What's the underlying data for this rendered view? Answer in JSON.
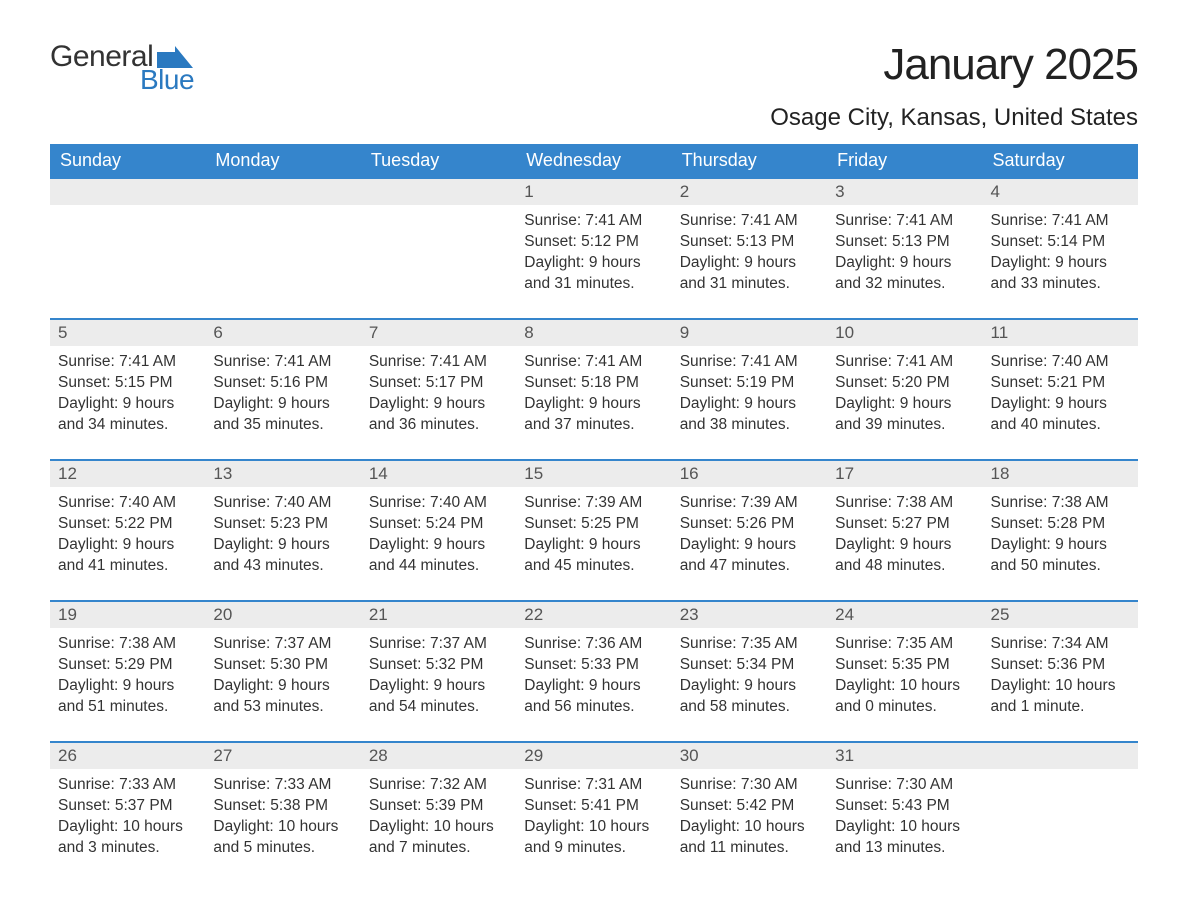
{
  "brand": {
    "line1": "General",
    "line2": "Blue",
    "accent_color": "#2a79c0"
  },
  "title": "January 2025",
  "location": "Osage City, Kansas, United States",
  "colors": {
    "header_bg": "#3585cc",
    "header_text": "#ffffff",
    "daynum_bg": "#ececec",
    "daynum_text": "#555555",
    "body_text": "#333333",
    "week_divider": "#3585cc",
    "page_bg": "#ffffff"
  },
  "typography": {
    "title_fontsize": 44,
    "location_fontsize": 24,
    "dow_fontsize": 18,
    "daynum_fontsize": 17,
    "body_fontsize": 15.5
  },
  "days_of_week": [
    "Sunday",
    "Monday",
    "Tuesday",
    "Wednesday",
    "Thursday",
    "Friday",
    "Saturday"
  ],
  "weeks": [
    [
      {
        "n": null
      },
      {
        "n": null
      },
      {
        "n": null
      },
      {
        "n": 1,
        "sunrise": "7:41 AM",
        "sunset": "5:12 PM",
        "daylight": "9 hours and 31 minutes."
      },
      {
        "n": 2,
        "sunrise": "7:41 AM",
        "sunset": "5:13 PM",
        "daylight": "9 hours and 31 minutes."
      },
      {
        "n": 3,
        "sunrise": "7:41 AM",
        "sunset": "5:13 PM",
        "daylight": "9 hours and 32 minutes."
      },
      {
        "n": 4,
        "sunrise": "7:41 AM",
        "sunset": "5:14 PM",
        "daylight": "9 hours and 33 minutes."
      }
    ],
    [
      {
        "n": 5,
        "sunrise": "7:41 AM",
        "sunset": "5:15 PM",
        "daylight": "9 hours and 34 minutes."
      },
      {
        "n": 6,
        "sunrise": "7:41 AM",
        "sunset": "5:16 PM",
        "daylight": "9 hours and 35 minutes."
      },
      {
        "n": 7,
        "sunrise": "7:41 AM",
        "sunset": "5:17 PM",
        "daylight": "9 hours and 36 minutes."
      },
      {
        "n": 8,
        "sunrise": "7:41 AM",
        "sunset": "5:18 PM",
        "daylight": "9 hours and 37 minutes."
      },
      {
        "n": 9,
        "sunrise": "7:41 AM",
        "sunset": "5:19 PM",
        "daylight": "9 hours and 38 minutes."
      },
      {
        "n": 10,
        "sunrise": "7:41 AM",
        "sunset": "5:20 PM",
        "daylight": "9 hours and 39 minutes."
      },
      {
        "n": 11,
        "sunrise": "7:40 AM",
        "sunset": "5:21 PM",
        "daylight": "9 hours and 40 minutes."
      }
    ],
    [
      {
        "n": 12,
        "sunrise": "7:40 AM",
        "sunset": "5:22 PM",
        "daylight": "9 hours and 41 minutes."
      },
      {
        "n": 13,
        "sunrise": "7:40 AM",
        "sunset": "5:23 PM",
        "daylight": "9 hours and 43 minutes."
      },
      {
        "n": 14,
        "sunrise": "7:40 AM",
        "sunset": "5:24 PM",
        "daylight": "9 hours and 44 minutes."
      },
      {
        "n": 15,
        "sunrise": "7:39 AM",
        "sunset": "5:25 PM",
        "daylight": "9 hours and 45 minutes."
      },
      {
        "n": 16,
        "sunrise": "7:39 AM",
        "sunset": "5:26 PM",
        "daylight": "9 hours and 47 minutes."
      },
      {
        "n": 17,
        "sunrise": "7:38 AM",
        "sunset": "5:27 PM",
        "daylight": "9 hours and 48 minutes."
      },
      {
        "n": 18,
        "sunrise": "7:38 AM",
        "sunset": "5:28 PM",
        "daylight": "9 hours and 50 minutes."
      }
    ],
    [
      {
        "n": 19,
        "sunrise": "7:38 AM",
        "sunset": "5:29 PM",
        "daylight": "9 hours and 51 minutes."
      },
      {
        "n": 20,
        "sunrise": "7:37 AM",
        "sunset": "5:30 PM",
        "daylight": "9 hours and 53 minutes."
      },
      {
        "n": 21,
        "sunrise": "7:37 AM",
        "sunset": "5:32 PM",
        "daylight": "9 hours and 54 minutes."
      },
      {
        "n": 22,
        "sunrise": "7:36 AM",
        "sunset": "5:33 PM",
        "daylight": "9 hours and 56 minutes."
      },
      {
        "n": 23,
        "sunrise": "7:35 AM",
        "sunset": "5:34 PM",
        "daylight": "9 hours and 58 minutes."
      },
      {
        "n": 24,
        "sunrise": "7:35 AM",
        "sunset": "5:35 PM",
        "daylight": "10 hours and 0 minutes."
      },
      {
        "n": 25,
        "sunrise": "7:34 AM",
        "sunset": "5:36 PM",
        "daylight": "10 hours and 1 minute."
      }
    ],
    [
      {
        "n": 26,
        "sunrise": "7:33 AM",
        "sunset": "5:37 PM",
        "daylight": "10 hours and 3 minutes."
      },
      {
        "n": 27,
        "sunrise": "7:33 AM",
        "sunset": "5:38 PM",
        "daylight": "10 hours and 5 minutes."
      },
      {
        "n": 28,
        "sunrise": "7:32 AM",
        "sunset": "5:39 PM",
        "daylight": "10 hours and 7 minutes."
      },
      {
        "n": 29,
        "sunrise": "7:31 AM",
        "sunset": "5:41 PM",
        "daylight": "10 hours and 9 minutes."
      },
      {
        "n": 30,
        "sunrise": "7:30 AM",
        "sunset": "5:42 PM",
        "daylight": "10 hours and 11 minutes."
      },
      {
        "n": 31,
        "sunrise": "7:30 AM",
        "sunset": "5:43 PM",
        "daylight": "10 hours and 13 minutes."
      },
      {
        "n": null
      }
    ]
  ],
  "labels": {
    "sunrise": "Sunrise: ",
    "sunset": "Sunset: ",
    "daylight": "Daylight: "
  }
}
